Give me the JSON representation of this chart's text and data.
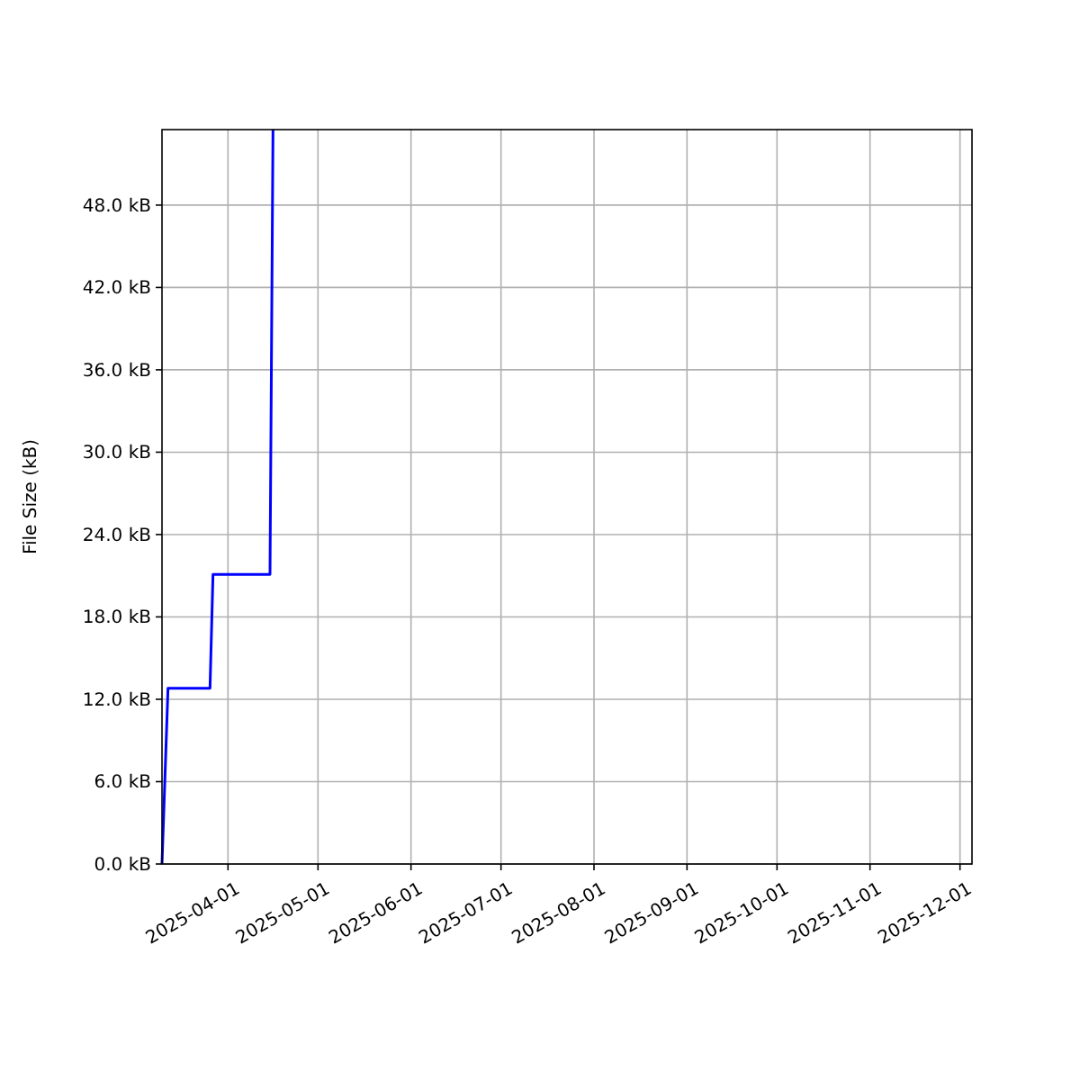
{
  "chart_data": {
    "type": "line",
    "ylabel": "File Size (kB)",
    "x": [
      "2025-03-10",
      "2025-03-12",
      "2025-03-26",
      "2025-03-27",
      "2025-04-15",
      "2025-04-16"
    ],
    "series": [
      {
        "color": "#0000ff",
        "values": [
          0,
          12.8,
          12.8,
          21.1,
          21.1,
          53.5
        ]
      }
    ],
    "xlim": [
      "2025-03-10",
      "2025-12-05"
    ],
    "xticks": [
      "2025-04-01",
      "2025-05-01",
      "2025-06-01",
      "2025-07-01",
      "2025-08-01",
      "2025-09-01",
      "2025-10-01",
      "2025-11-01",
      "2025-12-01"
    ],
    "ylim": [
      0,
      53.5
    ],
    "yticks": [
      {
        "value": 0,
        "label": "0.0 kB"
      },
      {
        "value": 6,
        "label": "6.0 kB"
      },
      {
        "value": 12,
        "label": "12.0 kB"
      },
      {
        "value": 18,
        "label": "18.0 kB"
      },
      {
        "value": 24,
        "label": "24.0 kB"
      },
      {
        "value": 30,
        "label": "30.0 kB"
      },
      {
        "value": 36,
        "label": "36.0 kB"
      },
      {
        "value": 42,
        "label": "42.0 kB"
      },
      {
        "value": 48,
        "label": "48.0 kB"
      }
    ],
    "grid": true,
    "marker": "none",
    "line_style": "solid"
  }
}
